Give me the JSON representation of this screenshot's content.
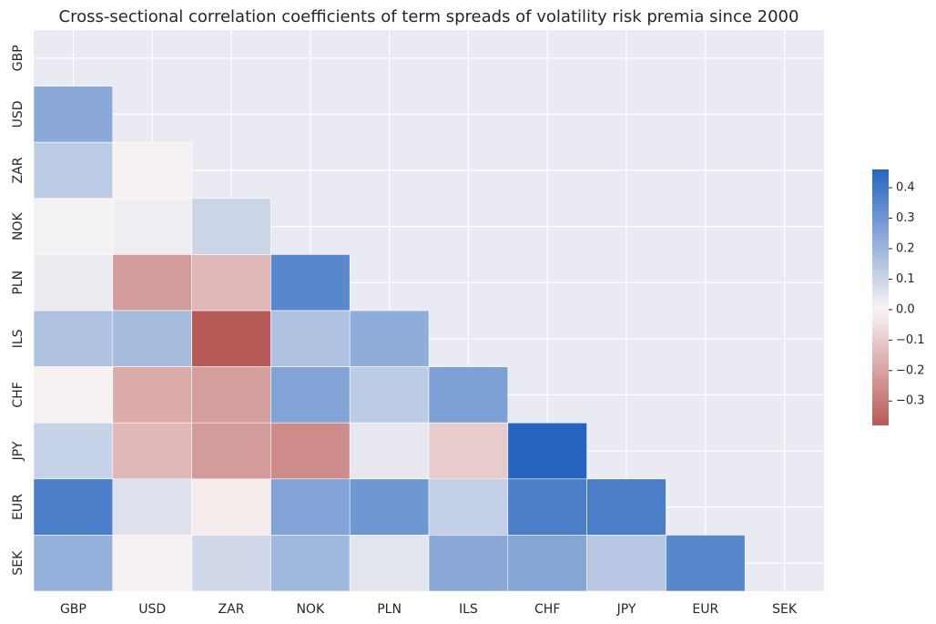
{
  "chart_data": {
    "type": "heatmap",
    "title": "Cross-sectional correlation coefficients of term spreads of volatility risk premia since 2000",
    "categories": [
      "GBP",
      "USD",
      "ZAR",
      "NOK",
      "PLN",
      "ILS",
      "CHF",
      "JPY",
      "EUR",
      "SEK"
    ],
    "matrix": [
      [
        null,
        null,
        null,
        null,
        null,
        null,
        null,
        null,
        null,
        null
      ],
      [
        0.24,
        null,
        null,
        null,
        null,
        null,
        null,
        null,
        null,
        null
      ],
      [
        0.13,
        -0.01,
        null,
        null,
        null,
        null,
        null,
        null,
        null,
        null
      ],
      [
        0.01,
        0.02,
        0.1,
        null,
        null,
        null,
        null,
        null,
        null,
        null
      ],
      [
        0.03,
        -0.22,
        -0.15,
        0.35,
        null,
        null,
        null,
        null,
        null,
        null
      ],
      [
        0.16,
        0.18,
        -0.38,
        0.16,
        0.23,
        null,
        null,
        null,
        null,
        null
      ],
      [
        -0.01,
        -0.18,
        -0.21,
        0.26,
        0.13,
        0.27,
        null,
        null,
        null,
        null
      ],
      [
        0.11,
        -0.15,
        -0.22,
        -0.26,
        0.04,
        -0.1,
        0.46,
        null,
        null,
        null
      ],
      [
        0.38,
        0.06,
        -0.02,
        0.26,
        0.3,
        0.12,
        0.38,
        0.38,
        null,
        null
      ],
      [
        0.22,
        -0.01,
        0.09,
        0.19,
        0.05,
        0.24,
        0.25,
        0.14,
        0.35,
        null
      ]
    ],
    "vmin": -0.38,
    "vmax": 0.46,
    "colorbar_ticks": [
      0.4,
      0.3,
      0.2,
      0.1,
      0.0,
      -0.1,
      -0.2,
      -0.3
    ],
    "colorbar_tick_labels": [
      "0.4",
      "0.3",
      "0.2",
      "0.1",
      "0.0",
      "−0.1",
      "−0.2",
      "−0.3"
    ],
    "colors": {
      "negative_end": "#b85a57",
      "center": "#f9f4f4",
      "positive_end": "#2565bf",
      "mask_background": "#eaeaf2"
    },
    "grid": true
  }
}
